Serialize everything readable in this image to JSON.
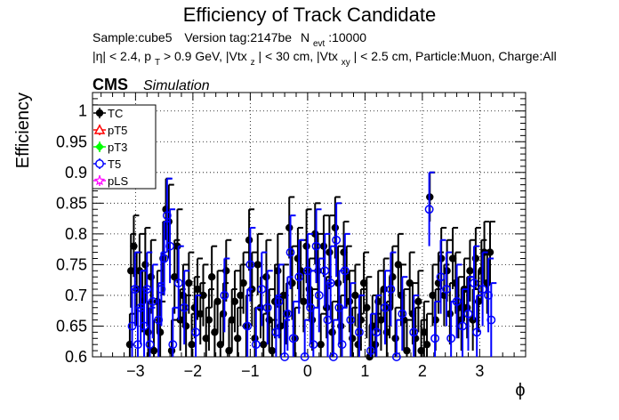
{
  "chart_data": {
    "type": "scatter",
    "title": "Efficiency of Track Candidate",
    "info_line1": {
      "sample": "Sample:cube5",
      "version": "Version tag:2147be",
      "nevt_label": "N",
      "nevt_sub": "evt",
      "nevt_value": ":10000"
    },
    "info_line2": {
      "eta": "|η| < 2.4, p",
      "pt_sub": "T",
      "pt_cut": " > 0.9 GeV, |Vtx",
      "vtxz_sub": "z",
      "vtxz_cut": "| < 30 cm, |Vtx",
      "vtxxy_sub": "xy",
      "rest": "| < 2.5 cm, Particle:Muon, Charge:All"
    },
    "cms_label": "CMS",
    "simulation_label": "Simulation",
    "xlabel": "ϕ",
    "ylabel": "Efficiency",
    "xlim": [
      -3.75,
      3.8
    ],
    "ylim": [
      0.6,
      1.03
    ],
    "x_ticks": [
      -3,
      -2,
      -1,
      0,
      1,
      2,
      3
    ],
    "x_tick_labels": [
      "−3",
      "−2",
      "−1",
      "0",
      "1",
      "2",
      "3"
    ],
    "y_ticks": [
      0.6,
      0.65,
      0.7,
      0.75,
      0.8,
      0.85,
      0.9,
      0.95,
      1.0
    ],
    "y_tick_labels": [
      "0.6",
      "0.65",
      "0.7",
      "0.75",
      "0.8",
      "0.85",
      "0.9",
      "0.95",
      "1"
    ],
    "grid": true,
    "legend_position": "top-left",
    "series": [
      {
        "name": "TC",
        "color": "#000000",
        "marker": "filled-circle",
        "points": [
          [
            -3.1,
            0.62,
            0.05
          ],
          [
            -3.08,
            0.74,
            0.06
          ],
          [
            -3.03,
            0.78,
            0.05
          ],
          [
            -2.98,
            0.71,
            0.06
          ],
          [
            -2.93,
            0.74,
            0.06
          ],
          [
            -2.88,
            0.69,
            0.05
          ],
          [
            -2.83,
            0.75,
            0.06
          ],
          [
            -2.78,
            0.64,
            0.05
          ],
          [
            -2.73,
            0.73,
            0.06
          ],
          [
            -2.68,
            0.61,
            0.05
          ],
          [
            -2.62,
            0.69,
            0.05
          ],
          [
            -2.57,
            0.64,
            0.05
          ],
          [
            -2.52,
            0.76,
            0.06
          ],
          [
            -2.47,
            0.84,
            0.05
          ],
          [
            -2.42,
            0.82,
            0.06
          ],
          [
            -2.37,
            0.61,
            0.05
          ],
          [
            -2.32,
            0.73,
            0.06
          ],
          [
            -2.27,
            0.78,
            0.06
          ],
          [
            -2.22,
            0.66,
            0.05
          ],
          [
            -2.17,
            0.7,
            0.05
          ],
          [
            -2.12,
            0.65,
            0.05
          ],
          [
            -2.07,
            0.72,
            0.05
          ],
          [
            -2.02,
            0.62,
            0.05
          ],
          [
            -1.97,
            0.68,
            0.05
          ],
          [
            -1.92,
            0.71,
            0.05
          ],
          [
            -1.87,
            0.67,
            0.05
          ],
          [
            -1.82,
            0.7,
            0.05
          ],
          [
            -1.77,
            0.63,
            0.05
          ],
          [
            -1.72,
            0.66,
            0.05
          ],
          [
            -1.67,
            0.73,
            0.05
          ],
          [
            -1.62,
            0.64,
            0.05
          ],
          [
            -1.57,
            0.69,
            0.05
          ],
          [
            -1.52,
            0.62,
            0.05
          ],
          [
            -1.47,
            0.67,
            0.05
          ],
          [
            -1.42,
            0.74,
            0.05
          ],
          [
            -1.37,
            0.61,
            0.05
          ],
          [
            -1.32,
            0.66,
            0.05
          ],
          [
            -1.27,
            0.69,
            0.05
          ],
          [
            -1.22,
            0.63,
            0.05
          ],
          [
            -1.17,
            0.7,
            0.05
          ],
          [
            -1.12,
            0.72,
            0.05
          ],
          [
            -1.07,
            0.65,
            0.05
          ],
          [
            -1.02,
            0.79,
            0.05
          ],
          [
            -0.97,
            0.71,
            0.06
          ],
          [
            -0.92,
            0.63,
            0.05
          ],
          [
            -0.87,
            0.75,
            0.05
          ],
          [
            -0.82,
            0.68,
            0.05
          ],
          [
            -0.77,
            0.62,
            0.05
          ],
          [
            -0.72,
            0.73,
            0.06
          ],
          [
            -0.67,
            0.66,
            0.05
          ],
          [
            -0.62,
            0.61,
            0.05
          ],
          [
            -0.57,
            0.69,
            0.06
          ],
          [
            -0.52,
            0.74,
            0.06
          ],
          [
            -0.47,
            0.65,
            0.05
          ],
          [
            -0.42,
            0.7,
            0.05
          ],
          [
            -0.37,
            0.67,
            0.05
          ],
          [
            -0.32,
            0.81,
            0.05
          ],
          [
            -0.27,
            0.72,
            0.06
          ],
          [
            -0.22,
            0.63,
            0.05
          ],
          [
            -0.17,
            0.76,
            0.05
          ],
          [
            -0.12,
            0.74,
            0.05
          ],
          [
            -0.07,
            0.69,
            0.05
          ],
          [
            -0.02,
            0.78,
            0.06
          ],
          [
            0.03,
            0.71,
            0.05
          ],
          [
            0.08,
            0.66,
            0.05
          ],
          [
            0.13,
            0.8,
            0.05
          ],
          [
            0.18,
            0.74,
            0.06
          ],
          [
            0.23,
            0.62,
            0.05
          ],
          [
            0.28,
            0.78,
            0.05
          ],
          [
            0.33,
            0.68,
            0.05
          ],
          [
            0.38,
            0.77,
            0.06
          ],
          [
            0.43,
            0.64,
            0.05
          ],
          [
            0.48,
            0.81,
            0.05
          ],
          [
            0.53,
            0.72,
            0.06
          ],
          [
            0.58,
            0.65,
            0.05
          ],
          [
            0.63,
            0.77,
            0.05
          ],
          [
            0.68,
            0.73,
            0.05
          ],
          [
            0.73,
            0.69,
            0.05
          ],
          [
            0.78,
            0.63,
            0.05
          ],
          [
            0.83,
            0.7,
            0.05
          ],
          [
            0.88,
            0.62,
            0.05
          ],
          [
            0.93,
            0.66,
            0.05
          ],
          [
            0.98,
            0.72,
            0.05
          ],
          [
            1.03,
            0.68,
            0.05
          ],
          [
            1.08,
            0.6,
            0.05
          ],
          [
            1.13,
            0.65,
            0.05
          ],
          [
            1.18,
            0.62,
            0.05
          ],
          [
            1.23,
            0.69,
            0.05
          ],
          [
            1.28,
            0.66,
            0.05
          ],
          [
            1.33,
            0.71,
            0.05
          ],
          [
            1.38,
            0.64,
            0.05
          ],
          [
            1.43,
            0.68,
            0.05
          ],
          [
            1.48,
            0.73,
            0.05
          ],
          [
            1.53,
            0.63,
            0.05
          ],
          [
            1.58,
            0.75,
            0.05
          ],
          [
            1.63,
            0.7,
            0.05
          ],
          [
            1.68,
            0.66,
            0.05
          ],
          [
            1.73,
            0.61,
            0.05
          ],
          [
            1.78,
            0.72,
            0.05
          ],
          [
            1.83,
            0.67,
            0.05
          ],
          [
            1.88,
            0.63,
            0.05
          ],
          [
            1.93,
            0.69,
            0.05
          ],
          [
            1.98,
            0.61,
            0.05
          ],
          [
            2.03,
            0.64,
            0.05
          ],
          [
            2.08,
            0.62,
            0.05
          ],
          [
            2.13,
            0.86,
            0.04
          ],
          [
            2.18,
            0.7,
            0.05
          ],
          [
            2.23,
            0.66,
            0.05
          ],
          [
            2.28,
            0.72,
            0.05
          ],
          [
            2.33,
            0.76,
            0.05
          ],
          [
            2.38,
            0.7,
            0.05
          ],
          [
            2.43,
            0.74,
            0.05
          ],
          [
            2.48,
            0.67,
            0.05
          ],
          [
            2.53,
            0.76,
            0.05
          ],
          [
            2.58,
            0.72,
            0.05
          ],
          [
            2.63,
            0.68,
            0.05
          ],
          [
            2.68,
            0.66,
            0.05
          ],
          [
            2.73,
            0.71,
            0.05
          ],
          [
            2.78,
            0.68,
            0.05
          ],
          [
            2.83,
            0.74,
            0.05
          ],
          [
            2.88,
            0.66,
            0.05
          ],
          [
            2.93,
            0.76,
            0.05
          ],
          [
            2.98,
            0.69,
            0.05
          ],
          [
            3.03,
            0.74,
            0.05
          ],
          [
            3.08,
            0.77,
            0.05
          ],
          [
            3.13,
            0.72,
            0.05
          ],
          [
            3.18,
            0.77,
            0.05
          ]
        ]
      },
      {
        "name": "pT5",
        "color": "#ff0000",
        "marker": "open-triangle",
        "points": []
      },
      {
        "name": "pT3",
        "color": "#00ff00",
        "marker": "filled-diamond",
        "points": []
      },
      {
        "name": "T5",
        "color": "#0000ff",
        "marker": "open-circle",
        "points": [
          [
            -3.06,
            0.65,
            0.06
          ],
          [
            -3.01,
            0.71,
            0.06
          ],
          [
            -2.96,
            0.62,
            0.06
          ],
          [
            -2.91,
            0.68,
            0.06
          ],
          [
            -2.85,
            0.65,
            0.06
          ],
          [
            -2.8,
            0.71,
            0.06
          ],
          [
            -2.75,
            0.62,
            0.06
          ],
          [
            -2.7,
            0.69,
            0.06
          ],
          [
            -2.6,
            0.66,
            0.06
          ],
          [
            -2.55,
            0.71,
            0.06
          ],
          [
            -2.5,
            0.76,
            0.06
          ],
          [
            -2.45,
            0.83,
            0.06
          ],
          [
            -2.4,
            0.78,
            0.06
          ],
          [
            -2.35,
            0.62,
            0.06
          ],
          [
            -2.25,
            0.72,
            0.06
          ],
          [
            -2.15,
            0.68,
            0.06
          ],
          [
            -1.95,
            0.64,
            0.06
          ],
          [
            -1.45,
            0.7,
            0.06
          ],
          [
            -1.05,
            0.65,
            0.06
          ],
          [
            -1.0,
            0.75,
            0.06
          ],
          [
            -0.9,
            0.62,
            0.06
          ],
          [
            -0.8,
            0.71,
            0.06
          ],
          [
            -0.7,
            0.68,
            0.06
          ],
          [
            -0.55,
            0.64,
            0.06
          ],
          [
            -0.5,
            0.69,
            0.06
          ],
          [
            -0.4,
            0.6,
            0.06
          ],
          [
            -0.35,
            0.67,
            0.06
          ],
          [
            -0.3,
            0.77,
            0.06
          ],
          [
            -0.25,
            0.63,
            0.06
          ],
          [
            -0.15,
            0.73,
            0.06
          ],
          [
            -0.05,
            0.6,
            0.06
          ],
          [
            0.0,
            0.74,
            0.06
          ],
          [
            0.05,
            0.68,
            0.06
          ],
          [
            0.1,
            0.62,
            0.06
          ],
          [
            0.15,
            0.78,
            0.06
          ],
          [
            0.2,
            0.7,
            0.06
          ],
          [
            0.3,
            0.74,
            0.06
          ],
          [
            0.35,
            0.66,
            0.06
          ],
          [
            0.4,
            0.72,
            0.06
          ],
          [
            0.45,
            0.6,
            0.06
          ],
          [
            0.5,
            0.79,
            0.06
          ],
          [
            0.55,
            0.68,
            0.06
          ],
          [
            0.6,
            0.62,
            0.06
          ],
          [
            0.65,
            0.74,
            0.06
          ],
          [
            0.75,
            0.66,
            0.06
          ],
          [
            0.9,
            0.64,
            0.06
          ],
          [
            1.1,
            0.61,
            0.06
          ],
          [
            1.2,
            0.64,
            0.06
          ],
          [
            1.35,
            0.68,
            0.06
          ],
          [
            1.45,
            0.71,
            0.06
          ],
          [
            1.55,
            0.6,
            0.06
          ],
          [
            1.65,
            0.67,
            0.06
          ],
          [
            1.85,
            0.64,
            0.06
          ],
          [
            2.12,
            0.84,
            0.06
          ],
          [
            2.22,
            0.63,
            0.06
          ],
          [
            2.32,
            0.73,
            0.06
          ],
          [
            2.42,
            0.71,
            0.06
          ],
          [
            2.5,
            0.63,
            0.06
          ],
          [
            2.6,
            0.69,
            0.06
          ],
          [
            2.7,
            0.65,
            0.06
          ],
          [
            2.8,
            0.67,
            0.06
          ],
          [
            2.9,
            0.72,
            0.06
          ],
          [
            2.95,
            0.64,
            0.06
          ],
          [
            3.05,
            0.71,
            0.06
          ],
          [
            3.15,
            0.7,
            0.06
          ],
          [
            3.2,
            0.66,
            0.06
          ]
        ]
      },
      {
        "name": "pLS",
        "color": "#ff00ff",
        "marker": "open-star",
        "points": []
      }
    ]
  }
}
